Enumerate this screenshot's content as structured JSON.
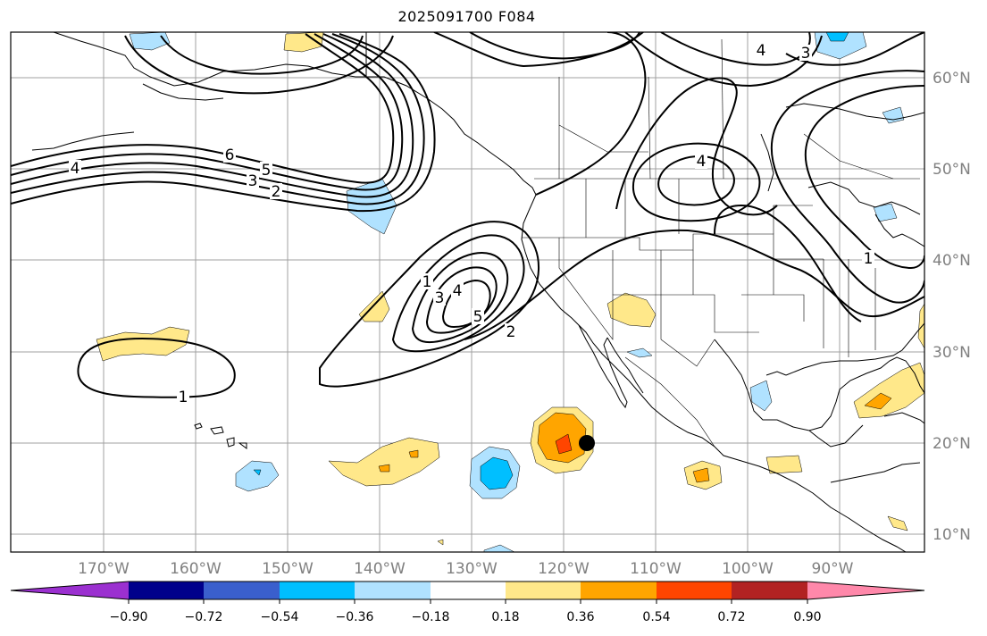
{
  "title": "2025091700 F084",
  "map": {
    "lon_range": [
      -180,
      -81
    ],
    "lat_range": [
      8,
      65
    ],
    "lon_labels": [
      "170°W",
      "160°W",
      "150°W",
      "140°W",
      "130°W",
      "120°W",
      "110°W",
      "100°W",
      "90°W"
    ],
    "lat_labels": [
      "60°N",
      "50°N",
      "40°N",
      "30°N",
      "20°N",
      "10°N"
    ],
    "marker": {
      "lon": -116.5,
      "lat": 20,
      "label": "point-marker"
    },
    "contour_labels": [
      "4",
      "6",
      "5",
      "3",
      "2",
      "1",
      "3",
      "4",
      "5",
      "2",
      "4",
      "3",
      "4",
      "1",
      "1"
    ]
  },
  "colorbar": {
    "tick_labels": [
      "−0.90",
      "−0.72",
      "−0.54",
      "−0.36",
      "−0.18",
      "0.18",
      "0.36",
      "0.54",
      "0.72",
      "0.90"
    ],
    "colors": [
      "#9b30d0",
      "#00008b",
      "#3a5fcd",
      "#00bfff",
      "#b0e2ff",
      "#ffffff",
      "#ffe88a",
      "#ffa500",
      "#ff4500",
      "#b22222",
      "#ff88aa"
    ]
  }
}
